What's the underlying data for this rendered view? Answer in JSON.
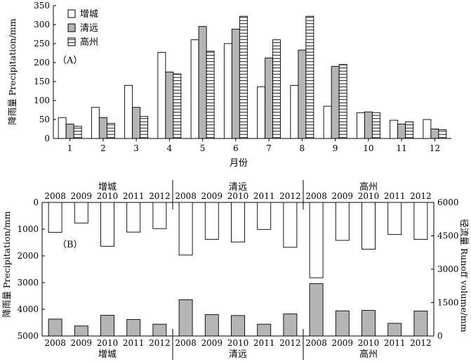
{
  "chart_data": [
    {
      "type": "bar",
      "panel_label": "（A）",
      "categories": [
        "1",
        "2",
        "3",
        "4",
        "5",
        "6",
        "7",
        "8",
        "9",
        "10",
        "11",
        "12"
      ],
      "xlabel": "月份",
      "ylabel": "降雨量 Precipitation/mm",
      "ylim": [
        0,
        350
      ],
      "yticks": [
        "0",
        "50",
        "100",
        "150",
        "200",
        "250",
        "300",
        "350"
      ],
      "legend_position": "top-left",
      "series": [
        {
          "name": "增城",
          "fill": "white",
          "values": [
            55,
            82,
            140,
            227,
            260,
            250,
            136,
            140,
            85,
            68,
            48,
            50
          ]
        },
        {
          "name": "清远",
          "fill": "gray",
          "values": [
            38,
            55,
            82,
            175,
            295,
            288,
            212,
            233,
            190,
            70,
            38,
            25
          ]
        },
        {
          "name": "高州",
          "fill": "hatched",
          "values": [
            32,
            40,
            58,
            170,
            230,
            322,
            260,
            322,
            195,
            68,
            44,
            23
          ]
        }
      ]
    },
    {
      "type": "bar",
      "panel_label": "（B）",
      "groups": [
        "增城",
        "清远",
        "高州"
      ],
      "years": [
        "2008",
        "2009",
        "2010",
        "2011",
        "2012"
      ],
      "left_axis": {
        "label": "降雨量 Precipitation/mm",
        "ticks": [
          "0",
          "1000",
          "2000",
          "3000",
          "4000",
          "5000"
        ],
        "ylim": [
          0,
          5000
        ],
        "inverted": true
      },
      "right_axis": {
        "label": "径流量 Runoff volume/mm",
        "ticks": [
          "0",
          "1500",
          "3000",
          "4500",
          "6000"
        ],
        "ylim": [
          0,
          6000
        ]
      },
      "series": [
        {
          "fill": "white",
          "axis": "left",
          "values": [
            1120,
            770,
            1640,
            1110,
            980,
            1970,
            1380,
            1480,
            1010,
            1680,
            2820,
            1420,
            1750,
            1200,
            1380
          ]
        },
        {
          "fill": "gray",
          "axis": "right",
          "values": [
            760,
            450,
            930,
            740,
            530,
            1630,
            960,
            920,
            530,
            990,
            2350,
            1130,
            1150,
            570,
            1120
          ]
        }
      ]
    }
  ],
  "colors": {
    "white_bar": "#ffffff",
    "gray_bar": "#b5b5b5",
    "stroke": "#000000"
  }
}
